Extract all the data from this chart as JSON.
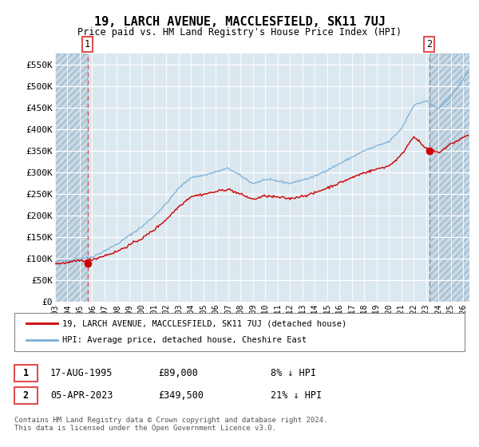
{
  "title": "19, LARCH AVENUE, MACCLESFIELD, SK11 7UJ",
  "subtitle": "Price paid vs. HM Land Registry's House Price Index (HPI)",
  "ylim": [
    0,
    575000
  ],
  "yticks": [
    0,
    50000,
    100000,
    150000,
    200000,
    250000,
    300000,
    350000,
    400000,
    450000,
    500000,
    550000
  ],
  "ytick_labels": [
    "£0",
    "£50K",
    "£100K",
    "£150K",
    "£200K",
    "£250K",
    "£300K",
    "£350K",
    "£400K",
    "£450K",
    "£500K",
    "£550K"
  ],
  "sale1_x": 1995.625,
  "sale1_price": 89000,
  "sale2_x": 2023.25,
  "sale2_price": 349500,
  "legend_line1": "19, LARCH AVENUE, MACCLESFIELD, SK11 7UJ (detached house)",
  "legend_line2": "HPI: Average price, detached house, Cheshire East",
  "footer": "Contains HM Land Registry data © Crown copyright and database right 2024.\nThis data is licensed under the Open Government Licence v3.0.",
  "sale_color": "#cc0000",
  "hpi_color": "#7ab0d4",
  "bg_plot_color": "#dce8f0",
  "bg_hatch_color": "#c8d8e4",
  "grid_color": "#b8ccd8",
  "dashed_red_color": "#e05050",
  "dashed_blue_color": "#7090b0",
  "xmin": 1993.0,
  "xmax": 2026.5
}
